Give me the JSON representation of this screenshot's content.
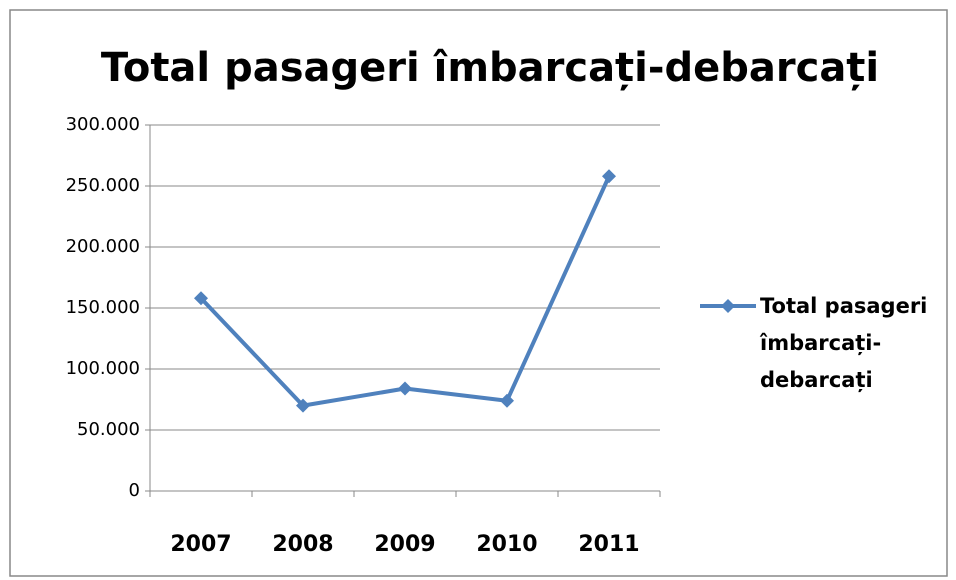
{
  "chart_data": {
    "type": "line",
    "title": "Total pasageri îmbarcați-debarcați",
    "categories": [
      "2007",
      "2008",
      "2009",
      "2010",
      "2011"
    ],
    "series": [
      {
        "name": "Total pasageri îmbarcați-debarcați",
        "color": "#4f81bd",
        "values": [
          158000,
          70000,
          84000,
          74000,
          258000
        ]
      }
    ],
    "ylim": [
      0,
      300000
    ],
    "yticks": [
      0,
      {
        "value": 50000,
        "label": "50.000"
      },
      {
        "value": 100000,
        "label": "100.000"
      },
      {
        "value": 150000,
        "label": "150.000"
      },
      {
        "value": 200000,
        "label": "200.000"
      },
      {
        "value": 250000,
        "label": "250.000"
      },
      {
        "value": 300000,
        "label": "300.000"
      }
    ],
    "grid": true,
    "legend": "right"
  }
}
